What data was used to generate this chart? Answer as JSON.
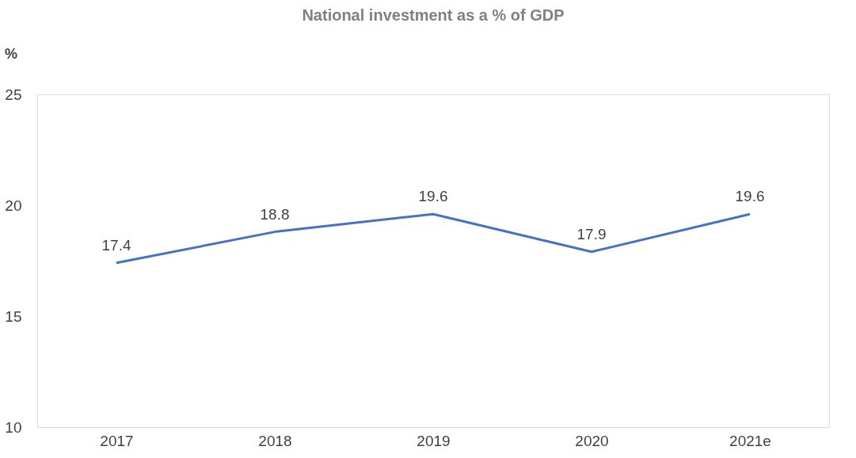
{
  "chart_data": {
    "type": "line",
    "title": "National investment as a % of GDP",
    "ylabel": "%",
    "categories": [
      "2017",
      "2018",
      "2019",
      "2020",
      "2021e"
    ],
    "series": [
      {
        "color": "#4472c4",
        "values": [
          17.4,
          18.8,
          19.6,
          17.9,
          19.6
        ]
      }
    ],
    "ylim": [
      10,
      25
    ],
    "yticks": [
      10,
      15,
      20,
      25
    ],
    "data_labels": true,
    "grid": false,
    "legend": false,
    "marker": "none",
    "line_style": "solid"
  }
}
